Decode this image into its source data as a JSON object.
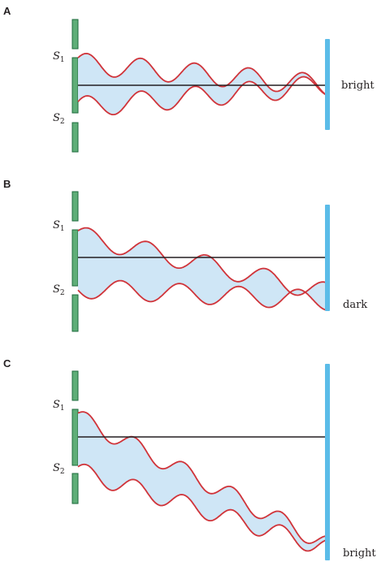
{
  "colors": {
    "barrier_fill": "#5fae78",
    "barrier_stroke": "#1e6b3c",
    "screen": "#5bbce8",
    "wave": "#d0343a",
    "wave_fill": "#cfe6f6",
    "center_line": "#231f20"
  },
  "slit_labels": {
    "s1_main": "S",
    "s1_sub": "1",
    "s2_main": "S",
    "s2_sub": "2"
  },
  "panels": [
    {
      "id": "A",
      "label": "A",
      "result": "bright"
    },
    {
      "id": "B",
      "label": "B",
      "result": "dark"
    },
    {
      "id": "C",
      "label": "C",
      "result": "bright"
    }
  ]
}
